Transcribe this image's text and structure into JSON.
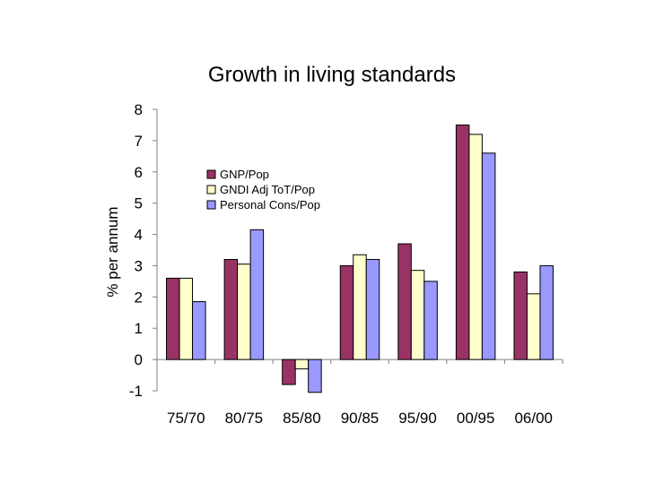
{
  "chart_data": {
    "type": "bar",
    "title": "Growth in living standards",
    "xlabel": "",
    "ylabel": "% per annum",
    "ylim": [
      -1,
      8
    ],
    "yticks": [
      "8",
      "7",
      "6",
      "5",
      "4",
      "3",
      "2",
      "1",
      "0",
      "-1"
    ],
    "ytick_values": [
      8,
      7,
      6,
      5,
      4,
      3,
      2,
      1,
      0,
      -1
    ],
    "categories": [
      "75/70",
      "80/75",
      "85/80",
      "90/85",
      "95/90",
      "00/95",
      "06/00"
    ],
    "series": [
      {
        "name": "GNP/Pop",
        "color": "#993366",
        "values": [
          2.6,
          3.2,
          -0.8,
          3.0,
          3.7,
          7.5,
          2.8
        ]
      },
      {
        "name": "GNDI Adj ToT/Pop",
        "color": "#FFFFCC",
        "values": [
          2.6,
          3.05,
          -0.3,
          3.35,
          2.85,
          7.2,
          2.1
        ]
      },
      {
        "name": "Personal Cons/Pop",
        "color": "#9999FF",
        "values": [
          1.85,
          4.15,
          -1.05,
          3.2,
          2.5,
          6.6,
          3.0
        ]
      }
    ],
    "legend": "upper-left inside plot",
    "grid": false
  }
}
